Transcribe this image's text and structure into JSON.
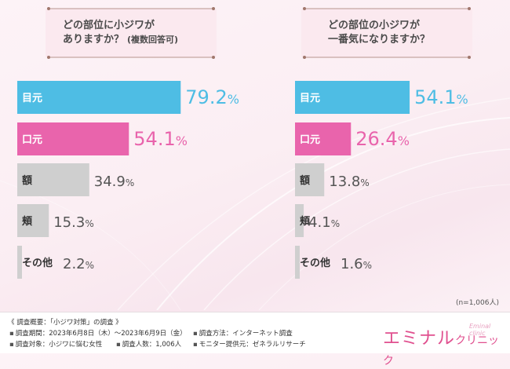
{
  "colors": {
    "blue": "#4ebde4",
    "pink": "#e964ac",
    "gray": "#cfcfcf",
    "footer_bg": "#ffffff",
    "brand_pink": "#e0508f"
  },
  "questions": {
    "left": {
      "line1": "どの部位に小ジワが",
      "line2": "ありますか？",
      "sub": "(複数回答可)"
    },
    "right": {
      "line1": "どの部位の小ジワが",
      "line2": "一番気になりますか？"
    }
  },
  "chart_data": [
    {
      "type": "bar",
      "orientation": "horizontal",
      "categories": [
        "目元",
        "口元",
        "額",
        "頬",
        "その他"
      ],
      "values": [
        79.2,
        54.1,
        34.9,
        15.3,
        2.2
      ],
      "value_labels": [
        "79.2%",
        "54.1%",
        "34.9%",
        "15.3%",
        "2.2%"
      ],
      "bar_colors": [
        "#4ebde4",
        "#e964ac",
        "#cfcfcf",
        "#cfcfcf",
        "#cfcfcf"
      ],
      "label_colors": [
        "#4ebde4",
        "#e964ac",
        "#555555",
        "#555555",
        "#555555"
      ],
      "xlim": [
        0,
        100
      ],
      "grid": false
    },
    {
      "type": "bar",
      "orientation": "horizontal",
      "categories": [
        "目元",
        "口元",
        "額",
        "頬",
        "その他"
      ],
      "values": [
        54.1,
        26.4,
        13.8,
        4.1,
        1.6
      ],
      "value_labels": [
        "54.1%",
        "26.4%",
        "13.8%",
        "4.1%",
        "1.6%"
      ],
      "bar_colors": [
        "#4ebde4",
        "#e964ac",
        "#cfcfcf",
        "#cfcfcf",
        "#cfcfcf"
      ],
      "label_colors": [
        "#4ebde4",
        "#e964ac",
        "#555555",
        "#555555",
        "#555555"
      ],
      "xlim": [
        0,
        100
      ],
      "grid": false
    }
  ],
  "sample_note": "(n=1,006人)",
  "footer": {
    "heading": "《 調査概要：「小ジワ対策」の調査 》",
    "items": [
      "調査期間：2023年6月8日（木）～2023年6月9日（金）",
      "調査方法：インターネット調査",
      "調査対象：小ジワに悩む女性",
      "調査人数：1,006人",
      "モニター提供元：ゼネラルリサーチ"
    ],
    "bullet": "▪"
  },
  "brand": {
    "name_big": "エミナル",
    "name_small": "クリニック",
    "tag": "Eminal clinic"
  }
}
